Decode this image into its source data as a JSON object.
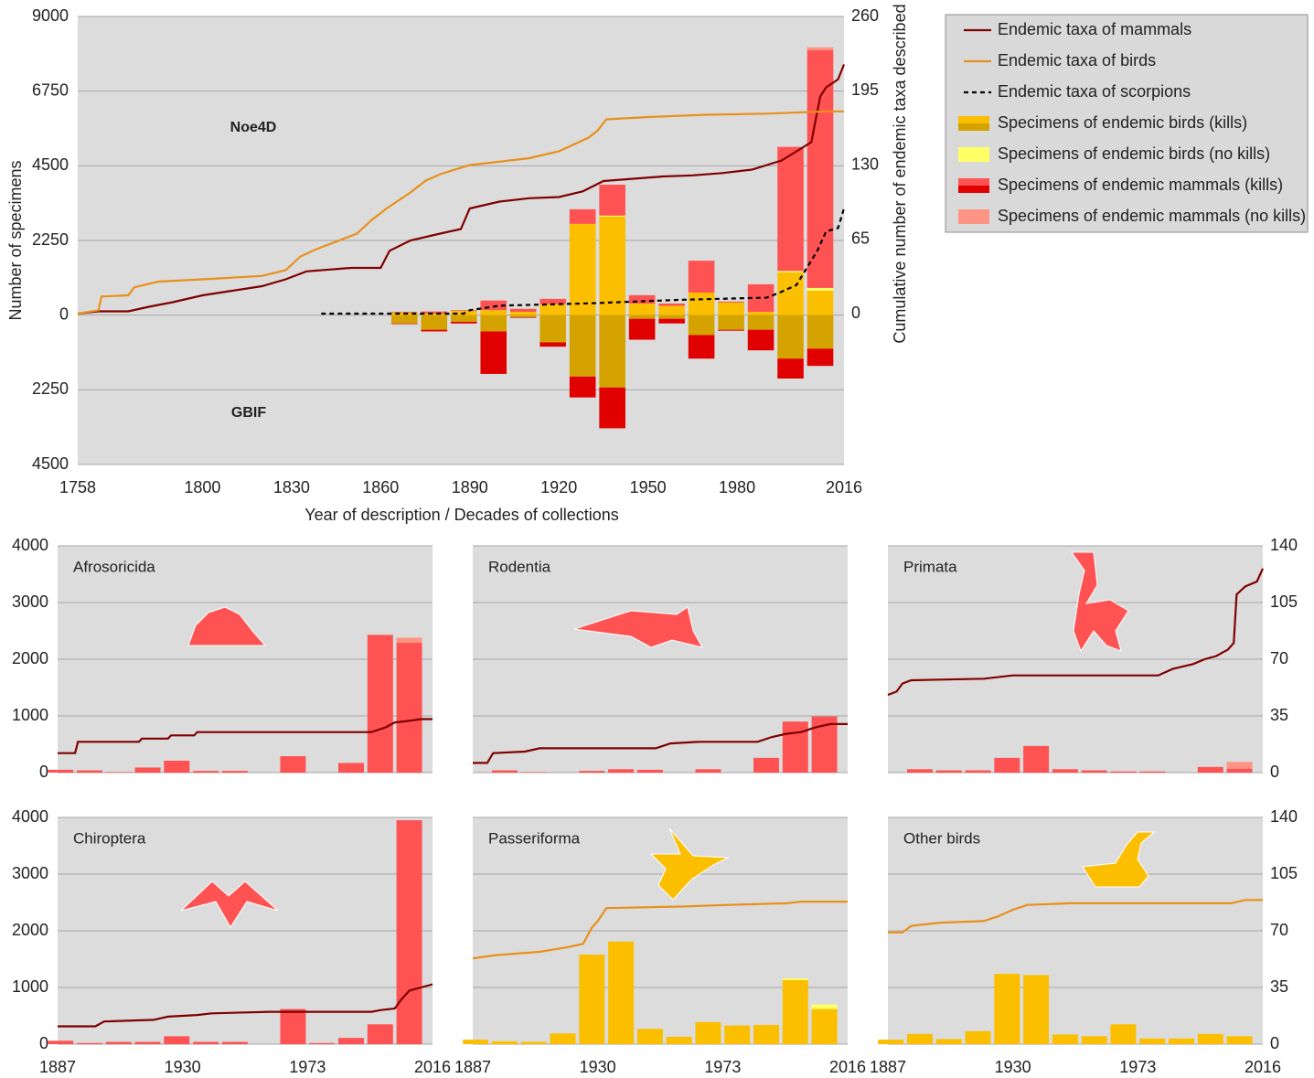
{
  "chart_data": [
    {
      "type": "combo",
      "y_label": "Number of specimens",
      "y2_label": "Cumulative number of endemic taxa described",
      "x_label": "Year of description / Decades of collections",
      "annotations": [
        "Noe4D",
        "GBIF"
      ],
      "xlim": [
        1758,
        2016
      ],
      "xticks": [
        1758,
        1800,
        1830,
        1860,
        1890,
        1920,
        1950,
        1980,
        2016
      ],
      "ylim": [
        -4500,
        9000
      ],
      "yticks": [
        9000,
        6750,
        4500,
        2250,
        0,
        {
          "value": -2250,
          "label": "2250"
        },
        {
          "value": -4500,
          "label": "4500"
        }
      ],
      "y2lim": [
        -132,
        260
      ],
      "y2ticks": [
        0,
        65,
        130,
        195,
        260
      ],
      "grid": true,
      "bar_x": [
        1868,
        1878,
        1888,
        1898,
        1908,
        1918,
        1928,
        1938,
        1948,
        1958,
        1968,
        1978,
        1988,
        1998,
        2008
      ],
      "line_series": [
        {
          "name": "Endemic taxa of mammals",
          "color": "#7f0000",
          "dash": false,
          "axis": "y2",
          "x": [
            1758,
            1765,
            1775,
            1782,
            1790,
            1800,
            1810,
            1820,
            1828,
            1835,
            1850,
            1860,
            1863,
            1870,
            1880,
            1887,
            1890,
            1900,
            1910,
            1920,
            1928,
            1935,
            1945,
            1955,
            1965,
            1975,
            1985,
            1995,
            2005,
            2008,
            2010,
            2014,
            2016
          ],
          "values": [
            0,
            2,
            2,
            6,
            10,
            16,
            20,
            24,
            30,
            37,
            40,
            40,
            55,
            64,
            70,
            74,
            92,
            98,
            101,
            102,
            107,
            116,
            118,
            120,
            121,
            123,
            126,
            134,
            150,
            190,
            198,
            205,
            218
          ]
        },
        {
          "name": "Endemic taxa of birds",
          "color": "#e8901a",
          "dash": false,
          "axis": "y2",
          "x": [
            1758,
            1765,
            1766,
            1775,
            1777,
            1785,
            1800,
            1820,
            1828,
            1833,
            1838,
            1845,
            1852,
            1857,
            1862,
            1870,
            1875,
            1880,
            1890,
            1900,
            1910,
            1920,
            1925,
            1930,
            1933,
            1936,
            1950,
            1970,
            1990,
            2010,
            2016
          ],
          "values": [
            0,
            3,
            15,
            16,
            23,
            28,
            30,
            33,
            38,
            50,
            56,
            63,
            70,
            82,
            92,
            106,
            116,
            122,
            130,
            133,
            136,
            142,
            148,
            154,
            160,
            170,
            172,
            174,
            175,
            177,
            177
          ]
        },
        {
          "name": "Endemic taxa of scorpions",
          "color": "#000000",
          "dash": true,
          "axis": "y2",
          "x": [
            1840,
            1888,
            1890,
            1895,
            1900,
            1930,
            1960,
            1990,
            1994,
            2000,
            2003,
            2007,
            2010,
            2014,
            2016
          ],
          "values": [
            0,
            0,
            3,
            5,
            7,
            9,
            12,
            14,
            18,
            25,
            38,
            55,
            72,
            75,
            92
          ]
        }
      ],
      "bar_series": [
        {
          "name": "Specimens of endemic birds (kills)",
          "color": "#fbbf00",
          "gbif_color": "#d4a300",
          "values": [
            80,
            50,
            130,
            150,
            100,
            330,
            2750,
            2970,
            350,
            280,
            680,
            380,
            100,
            1290,
            740
          ],
          "gbif_values": [
            -250,
            -440,
            -200,
            -490,
            -60,
            -820,
            -1850,
            -2180,
            -110,
            -110,
            -600,
            -440,
            -440,
            -1310,
            -1010
          ]
        },
        {
          "name": "Specimens of endemic birds (no kills)",
          "color": "#ffff66",
          "values": [
            0,
            0,
            0,
            0,
            0,
            0,
            0,
            30,
            0,
            0,
            0,
            0,
            0,
            40,
            80
          ]
        },
        {
          "name": "Specimens of endemic mammals (kills)",
          "color": "#ff5252",
          "gbif_color": "#e00000",
          "values": [
            20,
            60,
            20,
            290,
            90,
            160,
            440,
            930,
            250,
            70,
            960,
            30,
            830,
            3740,
            7170
          ],
          "gbif_values": [
            -20,
            -50,
            -50,
            -1280,
            -20,
            -130,
            -630,
            -1230,
            -630,
            -140,
            -710,
            -30,
            -620,
            -600,
            -520
          ]
        },
        {
          "name": "Specimens of endemic mammals (no kills)",
          "color": "#ff9485",
          "values": [
            0,
            0,
            0,
            0,
            0,
            0,
            0,
            0,
            0,
            0,
            0,
            0,
            0,
            0,
            80
          ]
        }
      ]
    },
    {
      "type": "combo",
      "title": "Afrosoricida",
      "xlim": [
        1887,
        2016
      ],
      "ylim": [
        0,
        4000
      ],
      "yticks": [
        0,
        1000,
        2000,
        3000,
        4000
      ],
      "y2lim": [
        0,
        140
      ],
      "grid": true,
      "bar_x": [
        1888,
        1898,
        1908,
        1918,
        1928,
        1938,
        1948,
        1958,
        1968,
        1978,
        1988,
        1998,
        2008
      ],
      "bar_series": [
        {
          "color": "#ff5252",
          "values": [
            50,
            40,
            10,
            90,
            210,
            30,
            30,
            0,
            290,
            0,
            170,
            2430,
            2290
          ]
        },
        {
          "color": "#ff9485",
          "values": [
            0,
            0,
            0,
            0,
            0,
            0,
            0,
            0,
            0,
            0,
            0,
            0,
            90
          ]
        }
      ],
      "line_series": [
        {
          "color": "#7f0000",
          "axis": "y2",
          "x": [
            1887,
            1893,
            1894,
            1915,
            1916,
            1925,
            1926,
            1934,
            1935,
            1995,
            2000,
            2003,
            2008,
            2012,
            2016
          ],
          "values": [
            12,
            12,
            19,
            19,
            21,
            21,
            23,
            23,
            25,
            25,
            28,
            31,
            32,
            33,
            33
          ]
        }
      ]
    },
    {
      "type": "combo",
      "title": "Rodentia",
      "xlim": [
        1887,
        2016
      ],
      "ylim": [
        0,
        4000
      ],
      "yticks": [
        0,
        1000,
        2000,
        3000,
        4000
      ],
      "y2lim": [
        0,
        140
      ],
      "grid": true,
      "bar_x": [
        1888,
        1898,
        1908,
        1918,
        1928,
        1938,
        1948,
        1958,
        1968,
        1978,
        1988,
        1998,
        2008
      ],
      "bar_series": [
        {
          "color": "#ff5252",
          "values": [
            0,
            40,
            10,
            0,
            30,
            60,
            50,
            0,
            60,
            0,
            260,
            900,
            990
          ]
        }
      ],
      "line_series": [
        {
          "color": "#7f0000",
          "axis": "y2",
          "x": [
            1887,
            1892,
            1894,
            1905,
            1910,
            1950,
            1955,
            1965,
            1985,
            1990,
            1995,
            2000,
            2005,
            2010,
            2016
          ],
          "values": [
            6,
            6,
            12,
            13,
            15,
            15,
            18,
            19,
            19,
            22,
            24,
            25,
            28,
            30,
            30
          ]
        }
      ]
    },
    {
      "type": "combo",
      "title": "Primata",
      "xlim": [
        1887,
        2016
      ],
      "ylim": [
        0,
        4000
      ],
      "yticks": [
        0,
        1000,
        2000,
        3000,
        4000
      ],
      "y2lim": [
        0,
        140
      ],
      "y2ticks": [
        0,
        35,
        70,
        105,
        140
      ],
      "grid": true,
      "bar_x": [
        1888,
        1898,
        1908,
        1918,
        1928,
        1938,
        1948,
        1958,
        1968,
        1978,
        1988,
        1998,
        2008
      ],
      "bar_series": [
        {
          "color": "#ff5252",
          "values": [
            0,
            60,
            40,
            40,
            260,
            470,
            60,
            40,
            20,
            20,
            0,
            100,
            70
          ]
        },
        {
          "color": "#ff9485",
          "values": [
            0,
            0,
            0,
            0,
            0,
            0,
            0,
            0,
            0,
            0,
            0,
            0,
            120
          ]
        }
      ],
      "line_series": [
        {
          "color": "#7f0000",
          "axis": "y2",
          "x": [
            1887,
            1890,
            1892,
            1895,
            1920,
            1930,
            1980,
            1985,
            1992,
            1996,
            2000,
            2004,
            2006,
            2007,
            2010,
            2014,
            2016
          ],
          "values": [
            48,
            50,
            55,
            57,
            58,
            60,
            60,
            64,
            67,
            70,
            72,
            76,
            80,
            110,
            115,
            118,
            126
          ]
        }
      ]
    },
    {
      "type": "combo",
      "title": "Chiroptera",
      "xlim": [
        1887,
        2016
      ],
      "xticks": [
        1887,
        1930,
        1973,
        2016
      ],
      "ylim": [
        0,
        4000
      ],
      "yticks": [
        0,
        1000,
        2000,
        3000,
        4000
      ],
      "y2lim": [
        0,
        140
      ],
      "grid": true,
      "bar_x": [
        1888,
        1898,
        1908,
        1918,
        1928,
        1938,
        1948,
        1958,
        1968,
        1978,
        1988,
        1998,
        2008
      ],
      "bar_series": [
        {
          "color": "#ff5252",
          "values": [
            60,
            20,
            40,
            40,
            140,
            40,
            40,
            0,
            620,
            20,
            110,
            350,
            3950
          ]
        }
      ],
      "line_series": [
        {
          "color": "#7f0000",
          "axis": "y2",
          "x": [
            1887,
            1900,
            1903,
            1920,
            1925,
            1935,
            1940,
            1960,
            1995,
            1998,
            2003,
            2005,
            2008,
            2012,
            2016
          ],
          "values": [
            11,
            11,
            14,
            15,
            17,
            18,
            19,
            20,
            20,
            21,
            22,
            27,
            33,
            35,
            37
          ]
        }
      ]
    },
    {
      "type": "combo",
      "title": "Passeriforma",
      "xlim": [
        1887,
        2016
      ],
      "xticks": [
        1887,
        1930,
        1973,
        2016
      ],
      "ylim": [
        0,
        4000
      ],
      "yticks": [
        0,
        1000,
        2000,
        3000,
        4000
      ],
      "y2lim": [
        0,
        140
      ],
      "grid": true,
      "bar_x": [
        1888,
        1898,
        1908,
        1918,
        1928,
        1938,
        1948,
        1958,
        1968,
        1978,
        1988,
        1998,
        2008
      ],
      "bar_series": [
        {
          "color": "#fbbf00",
          "values": [
            80,
            50,
            40,
            190,
            1580,
            1810,
            270,
            130,
            390,
            330,
            340,
            1130,
            620
          ]
        },
        {
          "color": "#ffff66",
          "values": [
            0,
            0,
            0,
            0,
            0,
            0,
            0,
            0,
            0,
            0,
            0,
            30,
            80
          ]
        }
      ],
      "line_series": [
        {
          "color": "#e8901a",
          "axis": "y2",
          "x": [
            1887,
            1895,
            1910,
            1920,
            1925,
            1928,
            1930,
            1933,
            1960,
            1975,
            1995,
            2000,
            2016
          ],
          "values": [
            53,
            55,
            57,
            60,
            62,
            72,
            76,
            84,
            85,
            86,
            87,
            88,
            88
          ]
        }
      ]
    },
    {
      "type": "combo",
      "title": "Other birds",
      "xlim": [
        1887,
        2016
      ],
      "xticks": [
        1887,
        1930,
        1973,
        2016
      ],
      "ylim": [
        0,
        4000
      ],
      "yticks": [
        0,
        1000,
        2000,
        3000,
        4000
      ],
      "y2lim": [
        0,
        140
      ],
      "y2ticks": [
        0,
        35,
        70,
        105,
        140
      ],
      "grid": true,
      "bar_x": [
        1888,
        1898,
        1908,
        1918,
        1928,
        1938,
        1948,
        1958,
        1968,
        1978,
        1988,
        1998,
        2008
      ],
      "bar_series": [
        {
          "color": "#fbbf00",
          "values": [
            80,
            180,
            90,
            230,
            1240,
            1220,
            170,
            140,
            350,
            100,
            100,
            180,
            140
          ]
        }
      ],
      "line_series": [
        {
          "color": "#e8901a",
          "axis": "y2",
          "x": [
            1887,
            1892,
            1895,
            1905,
            1920,
            1925,
            1930,
            1935,
            1950,
            2005,
            2010,
            2016
          ],
          "values": [
            69,
            69,
            73,
            75,
            76,
            79,
            83,
            86,
            87,
            87,
            89,
            89
          ]
        }
      ]
    }
  ]
}
